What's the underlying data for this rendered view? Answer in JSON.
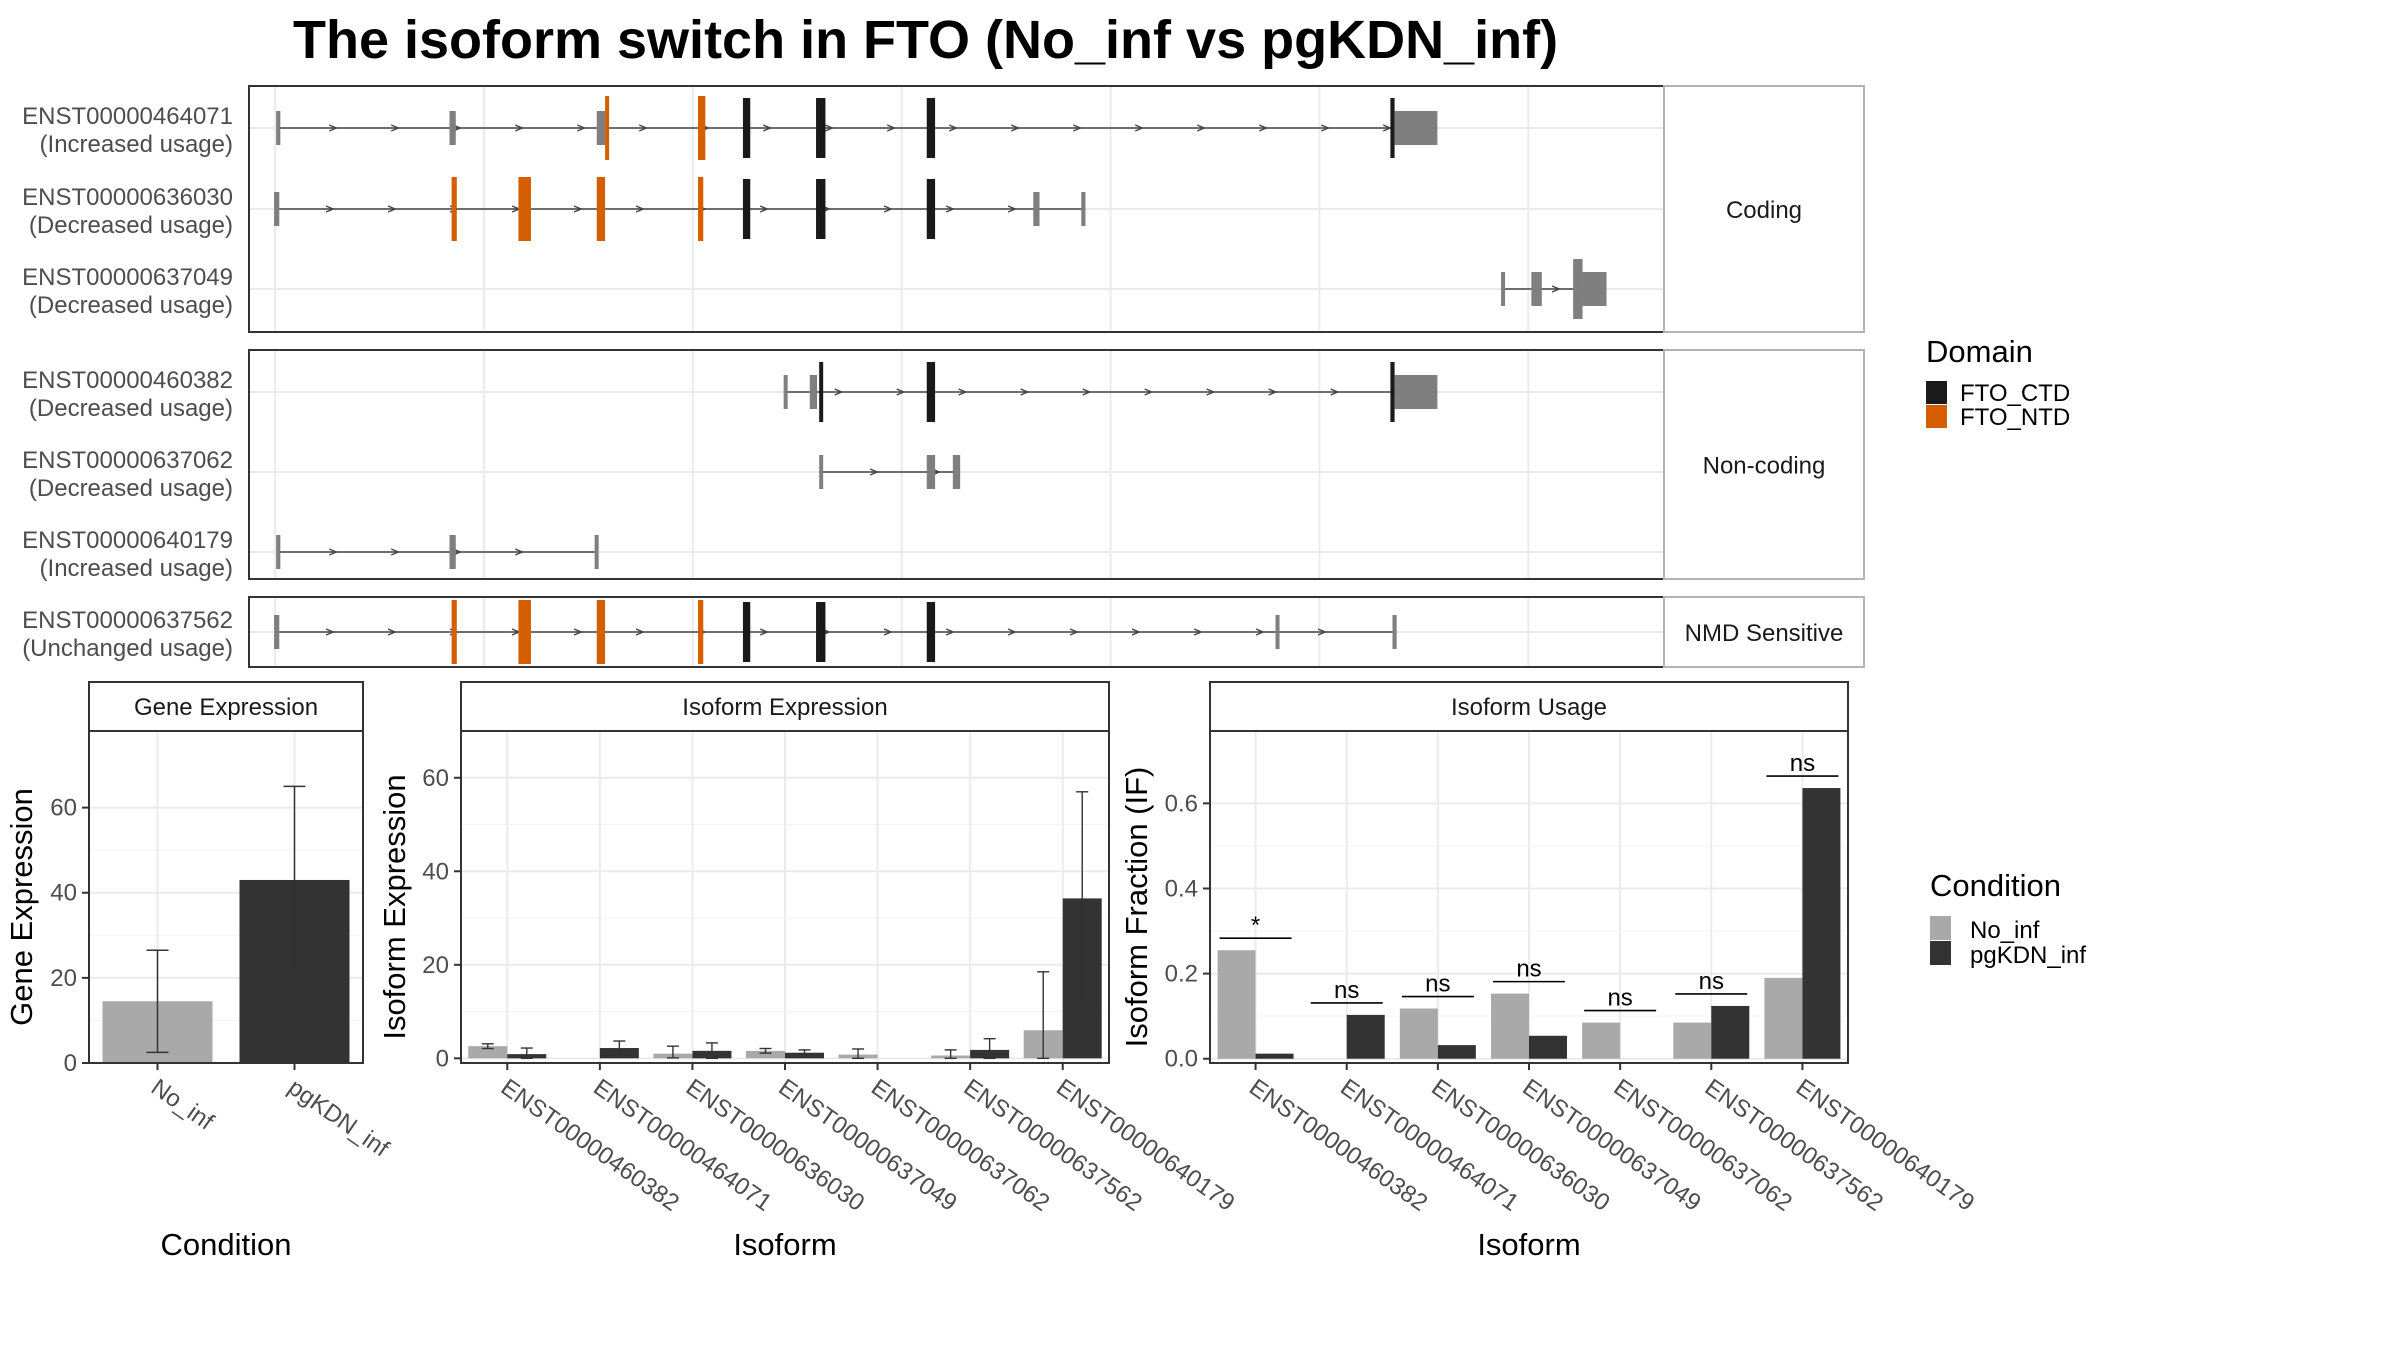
{
  "title": "The isoform switch in FTO (No_inf vs pgKDN_inf)",
  "colors": {
    "cds_black": "#1a1a1a",
    "utr_gray": "#7f7f7f",
    "ntd_orange": "#d55e00",
    "no_inf": "#a9a9a9",
    "pgkdn_inf": "#333333",
    "grid": "#ebebeb",
    "strip_fill": "#ffffff",
    "panel_border": "#333333",
    "strip_border": "#b3b3b3"
  },
  "isoform_structure": {
    "groups": [
      {
        "label": "Coding",
        "isoforms": [
          {
            "id": "ENST00000464071",
            "usage": "(Increased usage)",
            "start": 0.3,
            "end": 111.3,
            "exons": [
              [
                0.1,
                0.5,
                "utr"
              ],
              [
                16.7,
                17.3,
                "utr"
              ],
              [
                30.8,
                31.6,
                "utr"
              ],
              [
                31.6,
                31.9,
                "ntd"
              ],
              [
                40.5,
                41.2,
                "ntd"
              ],
              [
                44.8,
                45.5,
                "cds"
              ],
              [
                51.8,
                52.7,
                "cds"
              ],
              [
                62.4,
                63.2,
                "cds"
              ],
              [
                106.8,
                107.2,
                "cds"
              ],
              [
                107.2,
                111.3,
                "utr"
              ]
            ]
          },
          {
            "id": "ENST00000636030",
            "usage": "(Decreased usage)",
            "start": 0.0,
            "end": 77.5,
            "exons": [
              [
                -0.1,
                0.4,
                "utr"
              ],
              [
                16.9,
                17.4,
                "ntd"
              ],
              [
                23.3,
                24.5,
                "ntd"
              ],
              [
                30.8,
                31.6,
                "ntd"
              ],
              [
                40.5,
                41.0,
                "ntd"
              ],
              [
                44.8,
                45.5,
                "cds"
              ],
              [
                51.8,
                52.7,
                "cds"
              ],
              [
                62.4,
                63.2,
                "cds"
              ],
              [
                72.6,
                73.2,
                "utr"
              ],
              [
                77.2,
                77.6,
                "utr"
              ]
            ]
          },
          {
            "id": "ENST00000637049",
            "usage": "(Decreased usage)",
            "start": 117.4,
            "end": 125.6,
            "exons": [
              [
                117.4,
                117.7,
                "utr"
              ],
              [
                120.3,
                121.3,
                "utr"
              ],
              [
                124.3,
                125.2,
                "utr_big"
              ],
              [
                125.2,
                127.5,
                "utr"
              ]
            ]
          }
        ]
      },
      {
        "label": "Non-coding",
        "isoforms": [
          {
            "id": "ENST00000460382",
            "usage": "(Decreased usage)",
            "start": 48.7,
            "end": 111.3,
            "exons": [
              [
                48.7,
                49.0,
                "utr"
              ],
              [
                51.2,
                51.9,
                "utr"
              ],
              [
                52.1,
                52.4,
                "cds"
              ],
              [
                62.4,
                63.2,
                "cds"
              ],
              [
                106.8,
                107.2,
                "cds"
              ],
              [
                107.2,
                111.3,
                "utr"
              ]
            ]
          },
          {
            "id": "ENST00000637062",
            "usage": "(Decreased usage)",
            "start": 52.1,
            "end": 65.3,
            "exons": [
              [
                52.1,
                52.4,
                "utr"
              ],
              [
                62.4,
                63.2,
                "utr"
              ],
              [
                64.9,
                65.6,
                "utr"
              ]
            ]
          },
          {
            "id": "ENST00000640179",
            "usage": "(Increased usage)",
            "start": 0.3,
            "end": 30.8,
            "exons": [
              [
                0.1,
                0.5,
                "utr"
              ],
              [
                16.7,
                17.3,
                "utr"
              ],
              [
                30.6,
                30.9,
                "utr"
              ]
            ]
          }
        ]
      },
      {
        "label": "NMD Sensitive",
        "isoforms": [
          {
            "id": "ENST00000637562",
            "usage": "(Unchanged usage)",
            "start": 0.0,
            "end": 107.3,
            "exons": [
              [
                -0.1,
                0.4,
                "utr"
              ],
              [
                16.9,
                17.4,
                "ntd"
              ],
              [
                23.3,
                24.5,
                "ntd"
              ],
              [
                30.8,
                31.6,
                "ntd"
              ],
              [
                40.5,
                41.0,
                "ntd"
              ],
              [
                44.8,
                45.5,
                "cds"
              ],
              [
                51.8,
                52.7,
                "cds"
              ],
              [
                62.4,
                63.2,
                "cds"
              ],
              [
                95.8,
                96.0,
                "utr"
              ],
              [
                107.0,
                107.4,
                "utr"
              ]
            ]
          }
        ]
      }
    ],
    "legend": {
      "title": "Domain",
      "items": [
        {
          "label": "FTO_CTD",
          "color": "#1a1a1a"
        },
        {
          "label": "FTO_NTD",
          "color": "#d55e00"
        }
      ]
    }
  },
  "chart_data": [
    {
      "type": "bar",
      "title": "Gene Expression",
      "xlabel": "Condition",
      "ylabel": "Gene Expression",
      "categories": [
        "No_inf",
        "pgKDN_inf"
      ],
      "values": [
        14.5,
        43
      ],
      "error_low": [
        2.5,
        21
      ],
      "error_high": [
        26.5,
        65
      ],
      "ylim": [
        0,
        78
      ],
      "yticks": [
        0,
        20,
        40,
        60
      ]
    },
    {
      "type": "bar",
      "title": "Isoform Expression",
      "xlabel": "Isoform",
      "ylabel": "Isoform Expression",
      "categories": [
        "ENST00000460382",
        "ENST00000464071",
        "ENST00000636030",
        "ENST00000637049",
        "ENST00000637062",
        "ENST00000637562",
        "ENST00000640179"
      ],
      "series": [
        {
          "name": "No_inf",
          "values": [
            2.6,
            0,
            1.0,
            1.6,
            0.8,
            0.6,
            6.0
          ],
          "err_low": [
            2.1,
            0,
            0.1,
            1.1,
            0,
            0,
            0
          ],
          "err_high": [
            3.1,
            0,
            2.6,
            2.1,
            2.0,
            1.8,
            18.5
          ]
        },
        {
          "name": "pgKDN_inf",
          "values": [
            0.9,
            2.2,
            1.6,
            1.2,
            0,
            1.8,
            34.2
          ],
          "err_low": [
            0,
            0.8,
            0,
            0.6,
            0,
            0,
            11.5
          ],
          "err_high": [
            2.2,
            3.7,
            3.3,
            1.8,
            0,
            4.2,
            57
          ]
        }
      ],
      "ylim": [
        -1,
        70
      ],
      "yticks": [
        0,
        20,
        40,
        60
      ]
    },
    {
      "type": "bar",
      "title": "Isoform Usage",
      "xlabel": "Isoform",
      "ylabel": "Isoform Fraction (IF)",
      "categories": [
        "ENST00000460382",
        "ENST00000464071",
        "ENST00000636030",
        "ENST00000637049",
        "ENST00000637062",
        "ENST00000637562",
        "ENST00000640179"
      ],
      "series": [
        {
          "name": "No_inf",
          "values": [
            0.255,
            0,
            0.118,
            0.153,
            0.085,
            0.085,
            0.19
          ]
        },
        {
          "name": "pgKDN_inf",
          "values": [
            0.012,
            0.103,
            0.032,
            0.054,
            0,
            0.124,
            0.636
          ]
        }
      ],
      "significance": [
        "*",
        "ns",
        "ns",
        "ns",
        "ns",
        "ns",
        "ns"
      ],
      "ylim": [
        -0.01,
        0.77
      ],
      "yticks": [
        0.0,
        0.2,
        0.4,
        0.6
      ],
      "ytick_labels": [
        "0.0",
        "0.2",
        "0.4",
        "0.6"
      ]
    }
  ],
  "condition_legend": {
    "title": "Condition",
    "items": [
      {
        "label": "No_inf",
        "color": "#a9a9a9"
      },
      {
        "label": "pgKDN_inf",
        "color": "#333333"
      }
    ]
  }
}
